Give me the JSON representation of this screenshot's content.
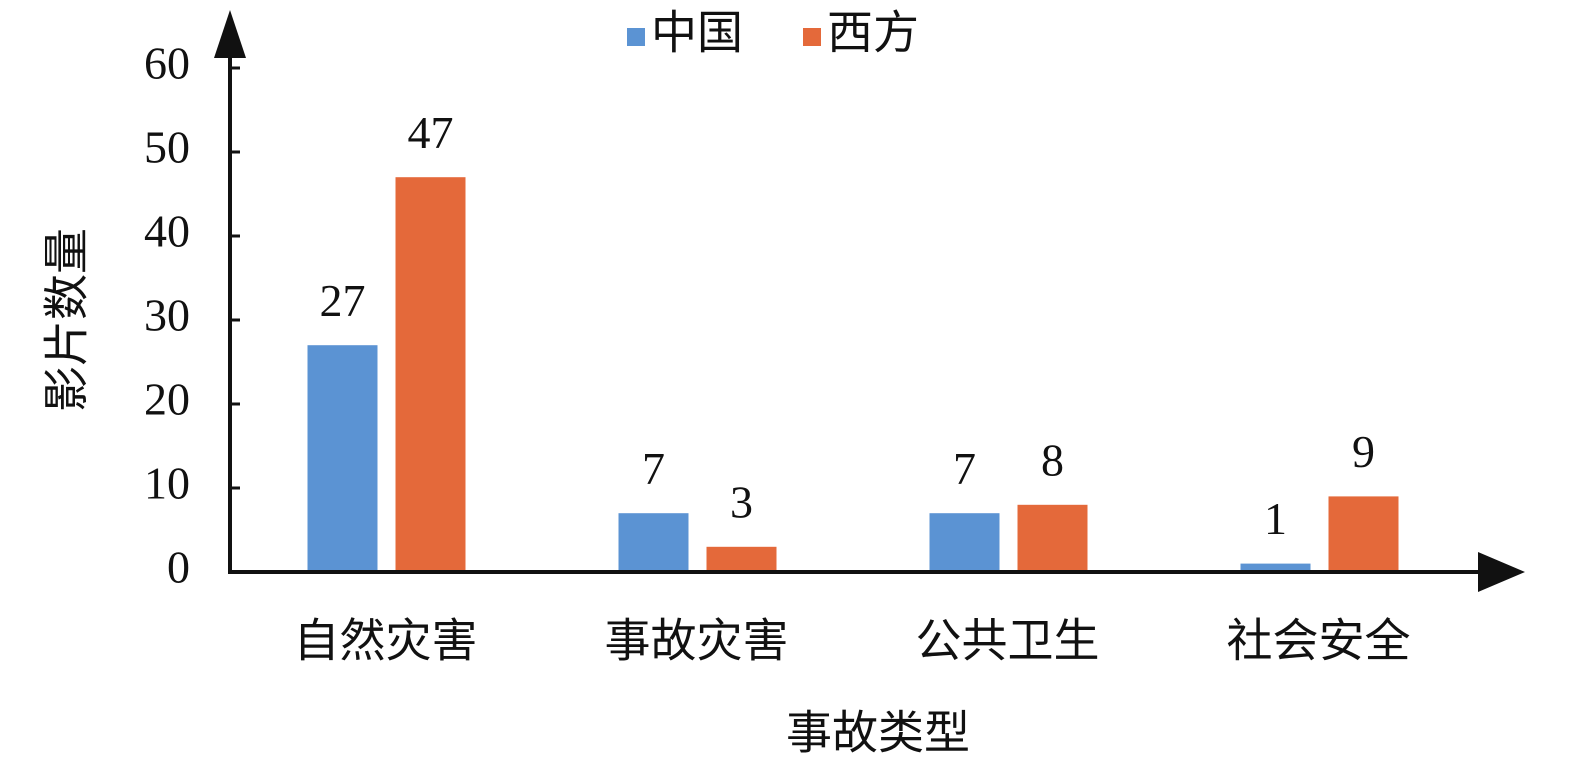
{
  "chart_data": {
    "type": "bar",
    "x_label": "事故类型",
    "y_label": "影片数量",
    "categories": [
      "自然灾害",
      "事故灾害",
      "公共卫生",
      "社会安全"
    ],
    "series": [
      {
        "name": "中国",
        "color": "#5b93d3",
        "values": [
          27,
          7,
          7,
          1
        ]
      },
      {
        "name": "西方",
        "color": "#e4693a",
        "values": [
          47,
          3,
          8,
          9
        ]
      }
    ],
    "ylim": [
      0,
      60
    ],
    "yticks": [
      0,
      10,
      20,
      30,
      40,
      50,
      60
    ],
    "legend": "top",
    "grid": false
  }
}
